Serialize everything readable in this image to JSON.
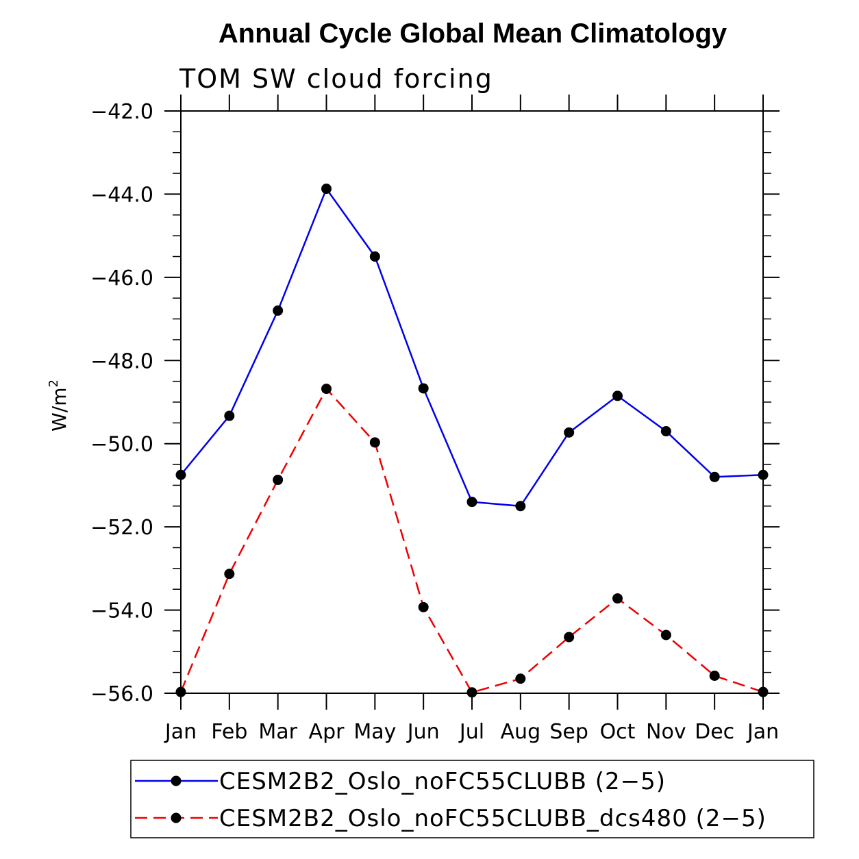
{
  "chart_data": {
    "type": "line",
    "title": "Annual Cycle Global Mean Climatology",
    "subtitle": "TOM SW cloud forcing",
    "ylabel": "W/m",
    "ylabel_superscript": "2",
    "xlabel": "",
    "ylim": [
      -56.0,
      -42.0
    ],
    "y_ticks": [
      -42.0,
      -44.0,
      -46.0,
      -48.0,
      -50.0,
      -52.0,
      -54.0,
      -56.0
    ],
    "y_tick_labels": [
      "−42.0",
      "−44.0",
      "−46.0",
      "−48.0",
      "−50.0",
      "−52.0",
      "−54.0",
      "−56.0"
    ],
    "categories": [
      "Jan",
      "Feb",
      "Mar",
      "Apr",
      "May",
      "Jun",
      "Jul",
      "Aug",
      "Sep",
      "Oct",
      "Nov",
      "Dec",
      "Jan"
    ],
    "grid": false,
    "legend_position": "bottom",
    "series": [
      {
        "name": "CESM2B2_Oslo_noFC55CLUBB (2−5)",
        "color": "#0000ee",
        "dash": "solid",
        "values": [
          -50.75,
          -49.33,
          -46.8,
          -43.87,
          -45.5,
          -48.67,
          -51.4,
          -51.5,
          -49.73,
          -48.85,
          -49.7,
          -50.8,
          -50.75
        ]
      },
      {
        "name": "CESM2B2_Oslo_noFC55CLUBB_dcs480 (2−5)",
        "color": "#ee0000",
        "dash": "dashed",
        "values": [
          -55.97,
          -53.13,
          -50.87,
          -48.68,
          -49.97,
          -53.93,
          -55.98,
          -55.65,
          -54.65,
          -53.72,
          -54.6,
          -55.58,
          -55.97
        ]
      }
    ]
  }
}
